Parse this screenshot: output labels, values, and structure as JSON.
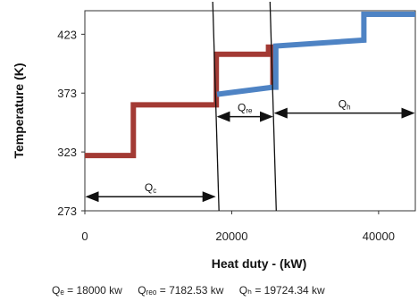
{
  "chart_data": {
    "type": "line",
    "xlabel": "Heat duty - (kW)",
    "ylabel": "Temperature (K)",
    "xlim": [
      0,
      45000
    ],
    "ylim": [
      273,
      443
    ],
    "x_ticks": [
      "0",
      "20000",
      "40000"
    ],
    "y_ticks": [
      "273",
      "323",
      "373",
      "423"
    ],
    "grid": false,
    "series": [
      {
        "color": "#a33a34",
        "points": [
          [
            0,
            320
          ],
          [
            6600,
            320
          ],
          [
            6600,
            363
          ],
          [
            17900,
            363
          ],
          [
            17900,
            406
          ],
          [
            25000,
            406
          ],
          [
            25000,
            412
          ],
          [
            25600,
            412
          ],
          [
            25600,
            378
          ]
        ]
      },
      {
        "color": "#4e83c4",
        "points": [
          [
            18000,
            372
          ],
          [
            25600,
            378
          ],
          [
            26000,
            378
          ],
          [
            26000,
            413
          ],
          [
            38000,
            418
          ],
          [
            38000,
            440
          ],
          [
            45000,
            440
          ]
        ]
      }
    ],
    "dividers_x": [
      17900,
      25700
    ],
    "annotations": [
      {
        "main": "Q",
        "sub": "c",
        "from": 0,
        "to": 17900,
        "y": 285
      },
      {
        "main": "Q",
        "sub": "re",
        "from": 17900,
        "to": 25700,
        "y": 353
      },
      {
        "main": "Q",
        "sub": "h",
        "from": 25700,
        "to": 45000,
        "y": 356
      }
    ]
  },
  "summary": {
    "qc": "Qₑ = 18000 kw",
    "qrec": "Qᵣₑₒ = 7182.53 kw",
    "qh": "Qₕ = 19724.34 kw"
  }
}
